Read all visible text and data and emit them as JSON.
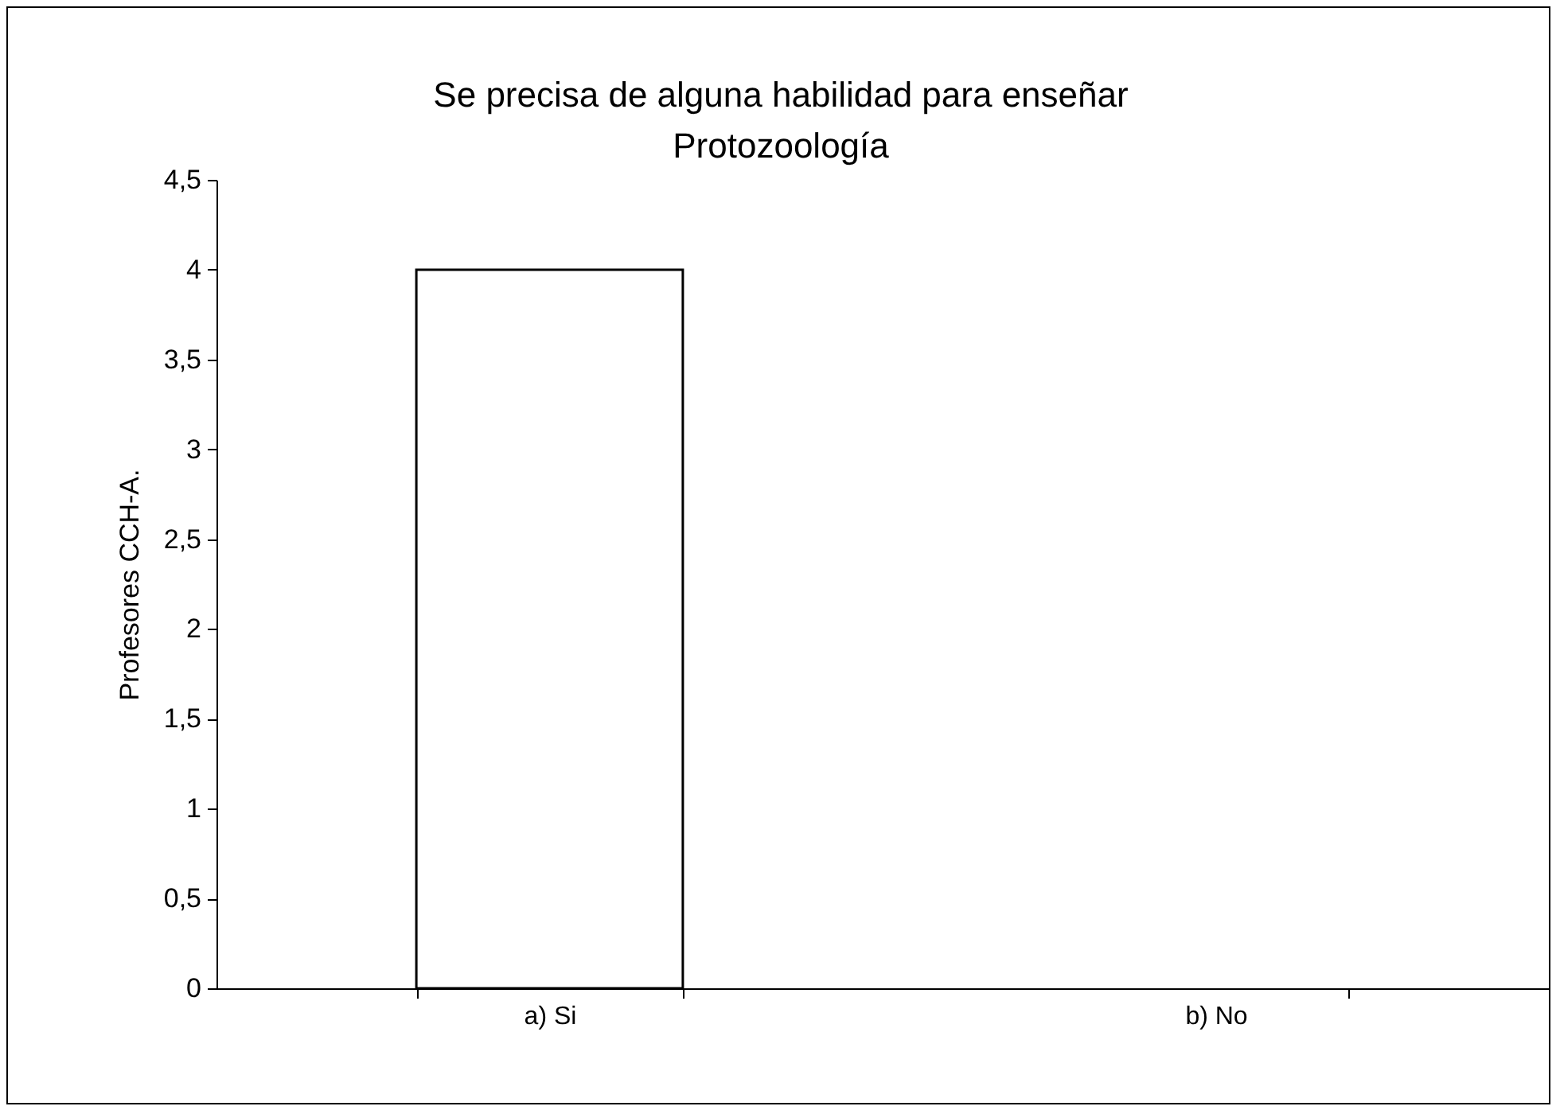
{
  "chart_data": {
    "type": "bar",
    "title": "Se precisa de alguna habilidad para enseñar\nProtozoología",
    "ylabel": "Profesores CCH-A.",
    "categories": [
      "a) Si",
      "b) No"
    ],
    "values": [
      4,
      0
    ],
    "color": "#ffffff",
    "ylim": [
      0,
      4.5
    ],
    "yticks": [
      0,
      {
        "value": 0.5,
        "label": "0,5"
      },
      1,
      {
        "value": 1.5,
        "label": "1,5"
      },
      2,
      {
        "value": 2.5,
        "label": "2,5"
      },
      3,
      {
        "value": 3.5,
        "label": "3,5"
      },
      4,
      {
        "value": 4.5,
        "label": "4,5"
      }
    ],
    "grid": false
  }
}
